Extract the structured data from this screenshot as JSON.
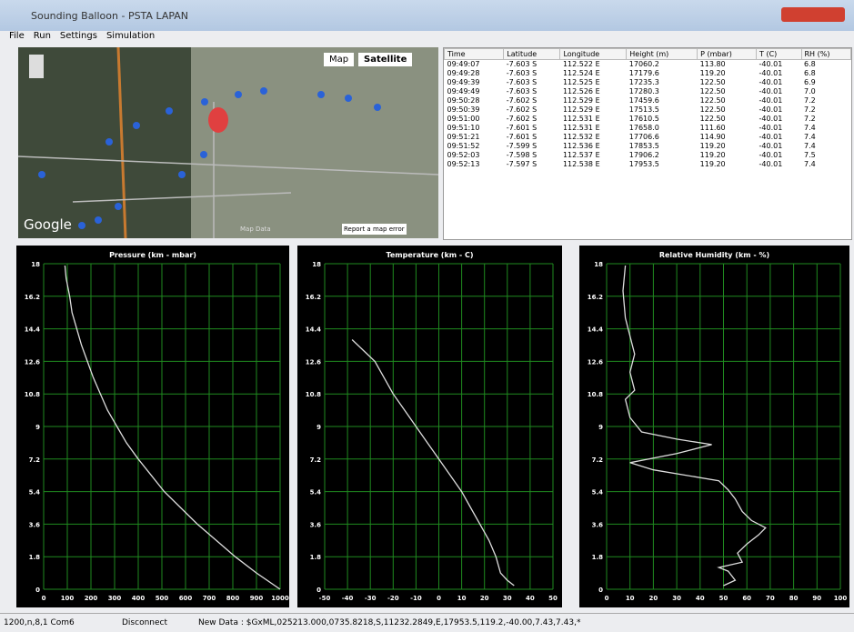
{
  "window": {
    "title": "Sounding Balloon - PSTA LAPAN",
    "menu": [
      "File",
      "Run",
      "Settings",
      "Simulation"
    ]
  },
  "map": {
    "buttons": [
      "Map",
      "Satellite"
    ],
    "logo": "Google",
    "footer": "Map Data",
    "report": "Report a map error"
  },
  "table": {
    "columns": [
      "Time",
      "Latitude",
      "Longitude",
      "Height (m)",
      "P (mbar)",
      "T (C)",
      "RH (%)"
    ],
    "rows": [
      [
        "09:49:07",
        "-7.603 S",
        "112.522 E",
        "17060.2",
        "113.80",
        "-40.01",
        "6.8"
      ],
      [
        "09:49:28",
        "-7.603 S",
        "112.524 E",
        "17179.6",
        "119.20",
        "-40.01",
        "6.8"
      ],
      [
        "09:49:39",
        "-7.603 S",
        "112.525 E",
        "17235.3",
        "122.50",
        "-40.01",
        "6.9"
      ],
      [
        "09:49:49",
        "-7.603 S",
        "112.526 E",
        "17280.3",
        "122.50",
        "-40.01",
        "7.0"
      ],
      [
        "09:50:28",
        "-7.602 S",
        "112.529 E",
        "17459.6",
        "122.50",
        "-40.01",
        "7.2"
      ],
      [
        "09:50:39",
        "-7.602 S",
        "112.529 E",
        "17513.5",
        "122.50",
        "-40.01",
        "7.2"
      ],
      [
        "09:51:00",
        "-7.602 S",
        "112.531 E",
        "17610.5",
        "122.50",
        "-40.01",
        "7.2"
      ],
      [
        "09:51:10",
        "-7.601 S",
        "112.531 E",
        "17658.0",
        "111.60",
        "-40.01",
        "7.4"
      ],
      [
        "09:51:21",
        "-7.601 S",
        "112.532 E",
        "17706.6",
        "114.90",
        "-40.01",
        "7.4"
      ],
      [
        "09:51:52",
        "-7.599 S",
        "112.536 E",
        "17853.5",
        "119.20",
        "-40.01",
        "7.4"
      ],
      [
        "09:52:03",
        "-7.598 S",
        "112.537 E",
        "17906.2",
        "119.20",
        "-40.01",
        "7.5"
      ],
      [
        "09:52:13",
        "-7.597 S",
        "112.538 E",
        "17953.5",
        "119.20",
        "-40.01",
        "7.4"
      ]
    ]
  },
  "chart_data": [
    {
      "type": "line",
      "title": "Pressure (km - mbar)",
      "color": "#dddddd",
      "grid": true,
      "x": [
        1000,
        900,
        810,
        730,
        650,
        580,
        510,
        455,
        400,
        350,
        310,
        270,
        240,
        210,
        185,
        160,
        140,
        120,
        110,
        95,
        90
      ],
      "values": [
        0,
        0.9,
        1.8,
        2.7,
        3.6,
        4.5,
        5.4,
        6.3,
        7.2,
        8.1,
        9,
        9.9,
        10.8,
        11.7,
        12.6,
        13.5,
        14.4,
        15.3,
        16.2,
        17.2,
        17.9
      ],
      "xlim": [
        0,
        1000
      ],
      "xticks": [
        0,
        100,
        200,
        300,
        400,
        500,
        600,
        700,
        800,
        900,
        1000
      ],
      "ylim": [
        0,
        18
      ],
      "yticks": [
        0,
        1.8,
        3.6,
        5.4,
        7.2,
        9,
        10.8,
        12.6,
        14.4,
        16.2,
        18
      ]
    },
    {
      "type": "line",
      "title": "Temperature (km - C)",
      "color": "#dddddd",
      "grid": true,
      "x": [
        33,
        30,
        27,
        25,
        22,
        18,
        14,
        10,
        5,
        0,
        -5,
        -10,
        -15,
        -20,
        -24,
        -28,
        -33,
        -38
      ],
      "values": [
        0.2,
        0.5,
        0.9,
        1.8,
        2.7,
        3.6,
        4.5,
        5.4,
        6.3,
        7.2,
        8.1,
        9,
        9.9,
        10.8,
        11.7,
        12.6,
        13.2,
        13.8
      ],
      "xlim": [
        -50,
        50
      ],
      "xticks": [
        -50,
        -40,
        -30,
        -20,
        -10,
        0,
        10,
        20,
        30,
        40,
        50
      ],
      "ylim": [
        0,
        18
      ],
      "yticks": [
        0,
        1.8,
        3.6,
        5.4,
        7.2,
        9,
        10.8,
        12.6,
        14.4,
        16.2,
        18
      ]
    },
    {
      "type": "line",
      "title": "Relative Humidity (km - %)",
      "color": "#dddddd",
      "grid": true,
      "x": [
        50,
        55,
        52,
        48,
        58,
        56,
        60,
        65,
        68,
        62,
        58,
        55,
        52,
        48,
        20,
        10,
        30,
        45,
        30,
        15,
        10,
        8,
        12,
        10,
        12,
        8,
        7,
        8
      ],
      "values": [
        0.2,
        0.5,
        1,
        1.2,
        1.5,
        2,
        2.5,
        3,
        3.4,
        3.8,
        4.3,
        5,
        5.5,
        6,
        6.6,
        7,
        7.5,
        8,
        8.3,
        8.7,
        9.5,
        10.5,
        11,
        12,
        13,
        15,
        16.5,
        17.9
      ],
      "xlim": [
        0,
        100
      ],
      "xticks": [
        0,
        10,
        20,
        30,
        40,
        50,
        60,
        70,
        80,
        90,
        100
      ],
      "ylim": [
        0,
        18
      ],
      "yticks": [
        0,
        1.8,
        3.6,
        5.4,
        7.2,
        9,
        10.8,
        12.6,
        14.4,
        16.2,
        18
      ]
    }
  ],
  "status": [
    "1200,n,8,1  Com6",
    "Disconnect",
    "New Data : $GxML,025213.000,0735.8218,S,11232.2849,E,17953.5,119.2,-40.00,7.43,7.43,*"
  ]
}
